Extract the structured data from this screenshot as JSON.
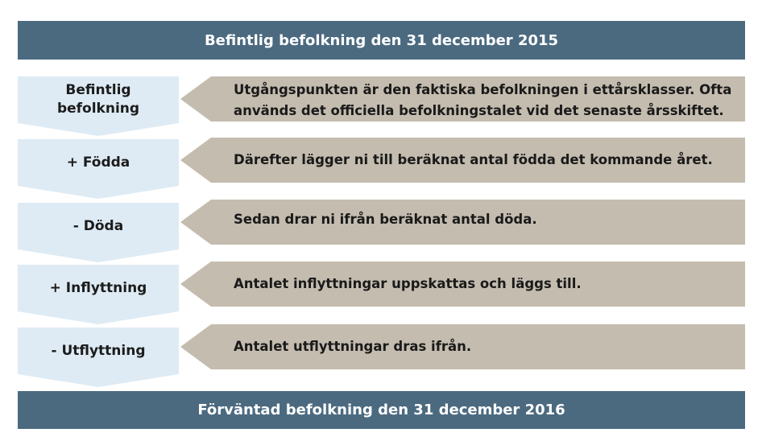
{
  "header": {
    "title": "Befintlig befolkning den 31 december 2015"
  },
  "steps": [
    {
      "label": "Befintlig\nbefolkning",
      "description": "Utgångspunkten är den faktiska befolkningen i ettårsklasser. Ofta\nanvänds det officiella befolkningstalet vid det senaste årsskiftet."
    },
    {
      "label": "+ Födda",
      "description": "Därefter lägger ni till beräknat antal födda det kommande året."
    },
    {
      "label": "- Döda",
      "description": "Sedan drar ni ifrån beräknat antal döda."
    },
    {
      "label": "+ Inflyttning",
      "description": "Antalet inflyttningar uppskattas och läggs till."
    },
    {
      "label": "- Utflyttning",
      "description": "Antalet utflyttningar dras ifrån."
    }
  ],
  "footer": {
    "title": "Förväntad befolkning den 31 december 2016"
  },
  "colors": {
    "bar": "#4b6a80",
    "step_arrow": "#deebf4",
    "description_arrow": "#c4bcaf"
  }
}
